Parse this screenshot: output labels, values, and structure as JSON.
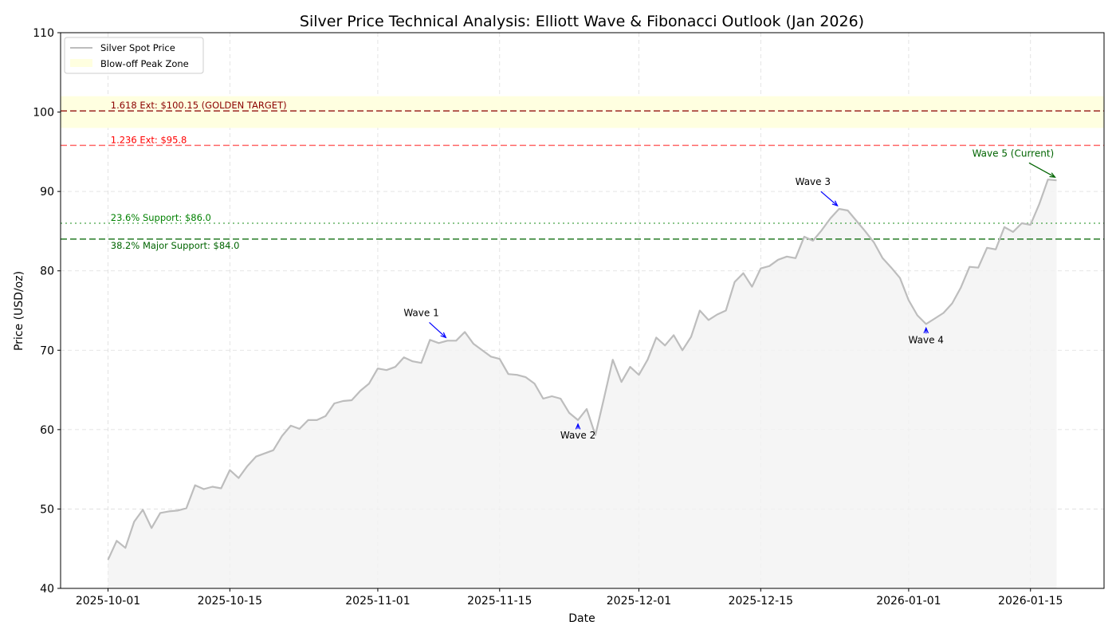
{
  "chart_data": {
    "type": "line",
    "title": "Silver Price Technical Analysis: Elliott Wave & Fibonacci Outlook (Jan 2026)",
    "xlabel": "Date",
    "ylabel": "Price (USD/oz)",
    "start_date": "2025-10-01",
    "ylim": [
      40,
      110
    ],
    "xlim_days": [
      -5.45,
      114.45
    ],
    "yticks": [
      40,
      50,
      60,
      70,
      80,
      90,
      100,
      110
    ],
    "xticks": [
      {
        "day": 0,
        "label": "2025-10-01"
      },
      {
        "day": 14,
        "label": "2025-10-15"
      },
      {
        "day": 31,
        "label": "2025-11-01"
      },
      {
        "day": 45,
        "label": "2025-11-15"
      },
      {
        "day": 61,
        "label": "2025-12-01"
      },
      {
        "day": 75,
        "label": "2025-12-15"
      },
      {
        "day": 92,
        "label": "2026-01-01"
      },
      {
        "day": 106,
        "label": "2026-01-15"
      }
    ],
    "grid": true,
    "legend_position": "top-left",
    "series": [
      {
        "name": "Silver Spot Price",
        "color": "#bdbdbd",
        "values": [
          43.6,
          46.0,
          45.1,
          48.4,
          49.9,
          47.6,
          49.5,
          49.7,
          49.8,
          50.1,
          53.0,
          52.5,
          52.8,
          52.6,
          54.9,
          53.9,
          55.4,
          56.6,
          57.0,
          57.4,
          59.2,
          60.5,
          60.1,
          61.2,
          61.2,
          61.7,
          63.3,
          63.6,
          63.7,
          64.9,
          65.8,
          67.7,
          67.5,
          67.9,
          69.1,
          68.6,
          68.4,
          71.3,
          70.9,
          71.2,
          71.2,
          72.3,
          70.8,
          70.0,
          69.2,
          68.9,
          67.0,
          66.9,
          66.6,
          65.8,
          63.9,
          64.2,
          63.9,
          62.1,
          61.2,
          62.6,
          59.3,
          64.0,
          68.8,
          66.0,
          67.9,
          66.9,
          68.8,
          71.6,
          70.6,
          71.9,
          70.0,
          71.7,
          75.0,
          73.8,
          74.5,
          75.0,
          78.6,
          79.7,
          78.0,
          80.3,
          80.6,
          81.4,
          81.8,
          81.6,
          84.3,
          83.8,
          85.1,
          86.6,
          87.8,
          87.6,
          86.3,
          85.0,
          83.6,
          81.6,
          80.4,
          79.1,
          76.3,
          74.4,
          73.3,
          74.0,
          74.7,
          75.9,
          77.9,
          80.5,
          80.4,
          82.9,
          82.7,
          85.5,
          84.9,
          86.0,
          85.8,
          88.4,
          91.5,
          91.4
        ]
      }
    ],
    "zone": {
      "name": "Blow-off Peak Zone",
      "from": 98,
      "to": 102,
      "color": "#ffffe0"
    },
    "levels": [
      {
        "value": 100.15,
        "label": "1.618 Ext: $100.15 (GOLDEN TARGET)",
        "color": "#8b0000",
        "style": "dashed"
      },
      {
        "value": 95.8,
        "label": "1.236 Ext: $95.8",
        "color": "#ff0000",
        "style": "dashed"
      },
      {
        "value": 86.0,
        "label": "23.6% Support: $86.0",
        "color": "#008000",
        "style": "dotted"
      },
      {
        "value": 84.0,
        "label": "38.2% Major Support: $84.0",
        "color": "#006400",
        "style": "dashed"
      }
    ],
    "annotations": [
      {
        "text": "Wave 1",
        "day": 39,
        "value": 71.2,
        "color": "#0000ff",
        "text_day": 36,
        "text_value": 74.3
      },
      {
        "text": "Wave 2",
        "day": 54,
        "value": 61.2,
        "color": "#0000ff",
        "text_day": 54,
        "text_value": 58.9
      },
      {
        "text": "Wave 3",
        "day": 84,
        "value": 87.8,
        "color": "#0000ff",
        "text_day": 81,
        "text_value": 90.8
      },
      {
        "text": "Wave 4",
        "day": 94,
        "value": 73.3,
        "color": "#0000ff",
        "text_day": 94,
        "text_value": 70.9
      },
      {
        "text": "Wave 5 (Current)",
        "day": 109,
        "value": 91.4,
        "color": "#006400",
        "text_day": 104,
        "text_value": 94.4
      }
    ]
  }
}
